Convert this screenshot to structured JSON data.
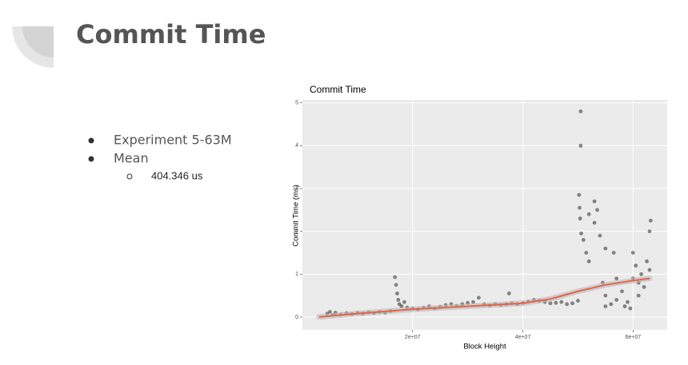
{
  "slide": {
    "title": "Commit Time",
    "bullets": [
      "Experiment 5-63M",
      "Mean"
    ],
    "sub_bullets": [
      "404.346 us"
    ]
  },
  "chart_data": {
    "type": "scatter",
    "title": "Commit Time",
    "x_label": "Block Height",
    "y_label": "Commit Time (ms)",
    "xlim": [
      0,
      66200000.0
    ],
    "ylim": [
      -0.3,
      5.07
    ],
    "xticks": [
      {
        "value": 20000000.0,
        "label": "2e+07"
      },
      {
        "value": 40000000.0,
        "label": "4e+07"
      },
      {
        "value": 60000000.0,
        "label": "6e+07"
      }
    ],
    "yticks": [
      0,
      1,
      2,
      3,
      4,
      5
    ],
    "grid": true,
    "series": [
      {
        "type": "scatter",
        "color": "#000000",
        "x": [
          4500000.0,
          5000000.0,
          5500000.0,
          6000000.0,
          7000000.0,
          8000000.0,
          9000000.0,
          10000000.0,
          11000000.0,
          12000000.0,
          13000000.0,
          14000000.0,
          15000000.0,
          16000000.0,
          16800000.0,
          17000000.0,
          17200000.0,
          17400000.0,
          17600000.0,
          18000000.0,
          18500000.0,
          19000000.0,
          20000000.0,
          21000000.0,
          22000000.0,
          23000000.0,
          24000000.0,
          25000000.0,
          26000000.0,
          27000000.0,
          28000000.0,
          29000000.0,
          30000000.0,
          31000000.0,
          32000000.0,
          33000000.0,
          34000000.0,
          35000000.0,
          36000000.0,
          37000000.0,
          37500000.0,
          38000000.0,
          39000000.0,
          40000000.0,
          41000000.0,
          42000000.0,
          43000000.0,
          44000000.0,
          45000000.0,
          46000000.0,
          47000000.0,
          48000000.0,
          49000000.0,
          50000000.0,
          50500000.0,
          50500000.0,
          50200000.0,
          50300000.0,
          50400000.0,
          50600000.0,
          51000000.0,
          51500000.0,
          52000000.0,
          52000000.0,
          53000000.0,
          53500000.0,
          53000000.0,
          54000000.0,
          55000000.0,
          54500000.0,
          55000000.0,
          56000000.0,
          55000000.0,
          57000000.0,
          56500000.0,
          58000000.0,
          59000000.0,
          59500000.0,
          60000000.0,
          60000000.0,
          60500000.0,
          61000000.0,
          61500000.0,
          62000000.0,
          62500000.0,
          63000000.0,
          63200000.0,
          63000000.0,
          57000000.0,
          58500000.0,
          61000000.0
        ],
        "values": [
          0.08,
          0.12,
          0.05,
          0.1,
          0.06,
          0.09,
          0.07,
          0.1,
          0.08,
          0.11,
          0.09,
          0.12,
          0.1,
          0.14,
          0.93,
          0.75,
          0.55,
          0.4,
          0.3,
          0.25,
          0.35,
          0.22,
          0.2,
          0.18,
          0.22,
          0.25,
          0.2,
          0.24,
          0.28,
          0.3,
          0.26,
          0.3,
          0.33,
          0.35,
          0.45,
          0.3,
          0.27,
          0.3,
          0.28,
          0.3,
          0.55,
          0.32,
          0.3,
          0.33,
          0.36,
          0.4,
          0.38,
          0.35,
          0.32,
          0.33,
          0.35,
          0.3,
          0.32,
          0.38,
          4.8,
          4.0,
          2.85,
          2.55,
          2.3,
          1.95,
          1.8,
          1.5,
          1.3,
          2.4,
          2.7,
          2.5,
          2.2,
          1.9,
          1.6,
          0.8,
          0.5,
          0.3,
          0.25,
          0.4,
          1.5,
          0.6,
          0.35,
          0.2,
          0.9,
          1.5,
          1.2,
          0.8,
          1.0,
          0.7,
          1.3,
          2.0,
          2.25,
          1.1,
          0.9,
          0.25,
          0.5
        ]
      },
      {
        "type": "line",
        "color": "#e8634a",
        "x": [
          3000000.0,
          10000000.0,
          20000000.0,
          30000000.0,
          40000000.0,
          45000000.0,
          50000000.0,
          55000000.0,
          60000000.0,
          63000000.0
        ],
        "values": [
          0.0,
          0.08,
          0.18,
          0.25,
          0.32,
          0.42,
          0.6,
          0.75,
          0.85,
          0.9
        ]
      }
    ]
  }
}
